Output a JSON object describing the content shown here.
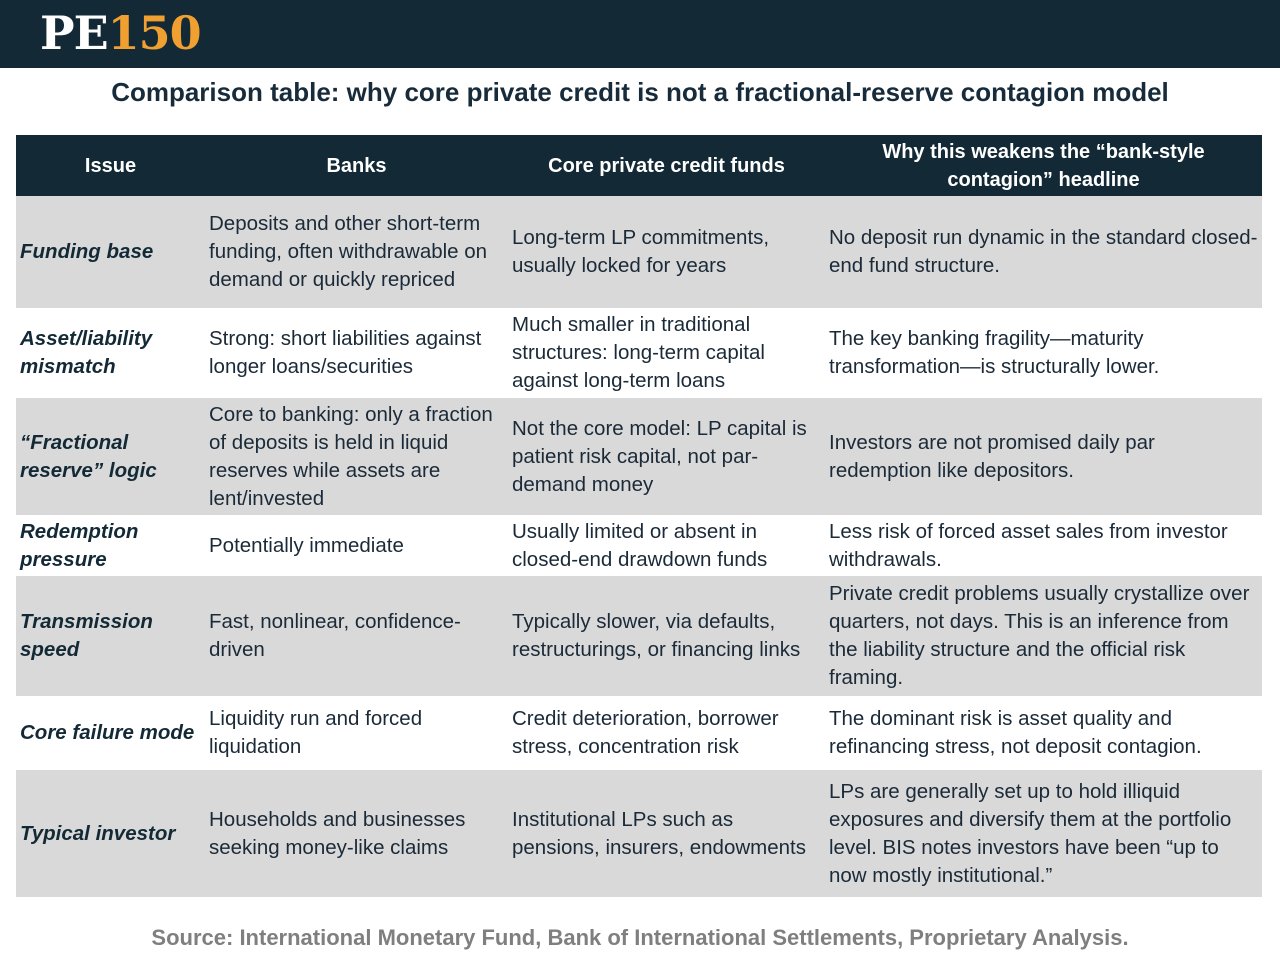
{
  "header": {
    "logo": {
      "part1": "PE",
      "part2": "150"
    }
  },
  "title": "Comparison table: why core private credit is not a fractional-reserve contagion model",
  "table": {
    "columns": [
      "Issue",
      "Banks",
      "Core private credit funds",
      "Why this weakens the “bank-style contagion” headline"
    ],
    "rows": [
      [
        "Funding base",
        "Deposits and other short-term funding, often withdrawable on demand or quickly repriced",
        "Long-term LP commitments, usually locked for years",
        "No deposit run dynamic in the standard closed-end fund structure."
      ],
      [
        "Asset/liability mismatch",
        "Strong: short liabilities against longer loans/securities",
        "Much smaller in traditional structures: long-term capital against long-term loans",
        "The key banking fragility—maturity transformation—is structurally lower."
      ],
      [
        "“Fractional reserve” logic",
        "Core to banking: only a fraction of deposits is held in liquid reserves while assets are lent/invested",
        "Not the core model: LP capital is patient risk capital, not par-demand money",
        "Investors are not promised daily par redemption like depositors."
      ],
      [
        "Redemption pressure",
        "Potentially immediate",
        "Usually limited or absent in closed-end drawdown funds",
        "Less risk of forced asset sales from investor withdrawals."
      ],
      [
        "Transmission speed",
        "Fast, nonlinear, confidence-driven",
        "Typically slower, via defaults, restructurings, or financing links",
        "Private credit problems usually crystallize over quarters, not days. This is an inference from the liability structure and the official risk framing."
      ],
      [
        "Core failure mode",
        "Liquidity run and forced liquidation",
        "Credit deterioration, borrower stress, concentration risk",
        "The dominant risk is asset quality and refinancing stress, not deposit contagion."
      ],
      [
        "Typical investor",
        "Households and businesses seeking money-like claims",
        "Institutional LPs such as pensions, insurers, endowments",
        "LPs are generally set up to hold illiquid exposures and diversify them at the portfolio level. BIS notes investors have been “up to now mostly institutional.”"
      ]
    ]
  },
  "source": "Source: International Monetary Fund, Bank of International Settlements, Proprietary Analysis."
}
